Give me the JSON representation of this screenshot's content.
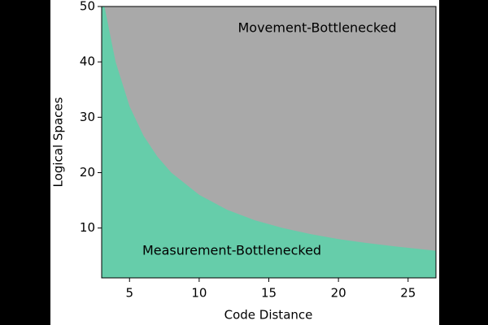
{
  "chart_data": {
    "type": "area",
    "x_label": "Code Distance",
    "y_label": "Logical Spaces",
    "annotations": [
      "Movement-Bottlenecked",
      "Measurement-Bottlenecked"
    ],
    "x": [
      3.2,
      4,
      5,
      6,
      7,
      8,
      10,
      12,
      14,
      16,
      18,
      20,
      22,
      24,
      27
    ],
    "values": [
      50,
      40,
      32,
      26.7,
      22.9,
      20,
      16,
      13.3,
      11.4,
      10,
      8.9,
      8,
      7.3,
      6.7,
      5.9
    ],
    "below_color": "#66cdaa",
    "above_color": "#a9a9a9",
    "xlim": [
      3,
      27
    ],
    "ylim": [
      1,
      50
    ],
    "xticks": [
      5,
      10,
      15,
      20,
      25
    ],
    "yticks": [
      10,
      20,
      30,
      40,
      50
    ]
  }
}
